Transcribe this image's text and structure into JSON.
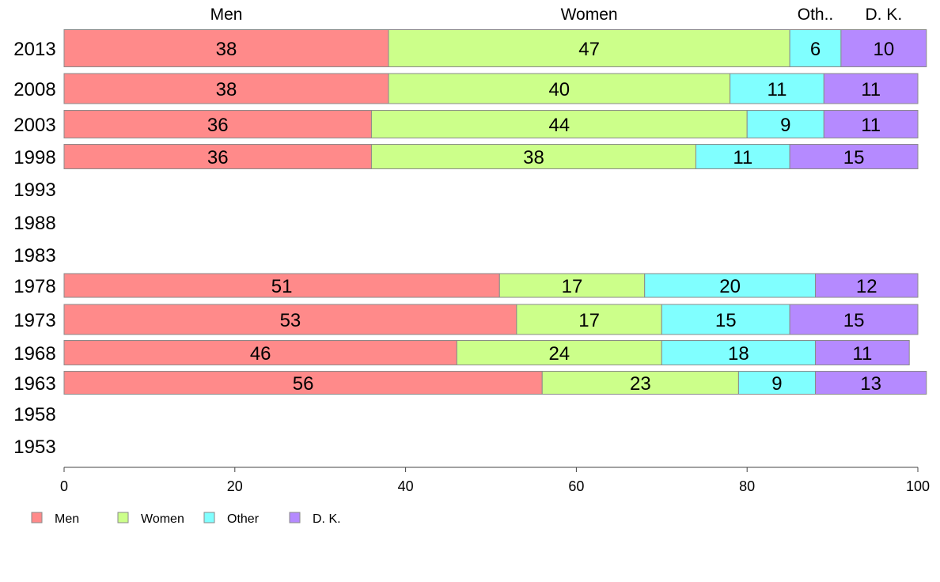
{
  "chart_data": {
    "type": "bar",
    "orientation": "horizontal",
    "stacked": true,
    "xlim": [
      0,
      100
    ],
    "x_ticks": [
      0,
      20,
      40,
      60,
      80,
      100
    ],
    "categories": [
      "2013",
      "2008",
      "2003",
      "1998",
      "1993",
      "1988",
      "1983",
      "1978",
      "1973",
      "1968",
      "1963",
      "1958",
      "1953"
    ],
    "series": [
      {
        "name": "Men",
        "header": "Men",
        "color": "#ff8a8a",
        "values": [
          38,
          38,
          36,
          36,
          null,
          null,
          null,
          51,
          53,
          46,
          56,
          null,
          null
        ]
      },
      {
        "name": "Women",
        "header": "Women",
        "color": "#ccff8a",
        "values": [
          47,
          40,
          44,
          38,
          null,
          null,
          null,
          17,
          17,
          24,
          23,
          null,
          null
        ]
      },
      {
        "name": "Other",
        "header": "Oth..",
        "color": "#80ffff",
        "values": [
          6,
          11,
          9,
          11,
          null,
          null,
          null,
          20,
          15,
          18,
          9,
          null,
          null
        ]
      },
      {
        "name": "D. K.",
        "header": "D. K.",
        "color": "#b58aff",
        "values": [
          10,
          11,
          11,
          15,
          null,
          null,
          null,
          12,
          15,
          11,
          13,
          null,
          null
        ]
      }
    ],
    "legend_position": "bottom-left",
    "grid": false
  }
}
